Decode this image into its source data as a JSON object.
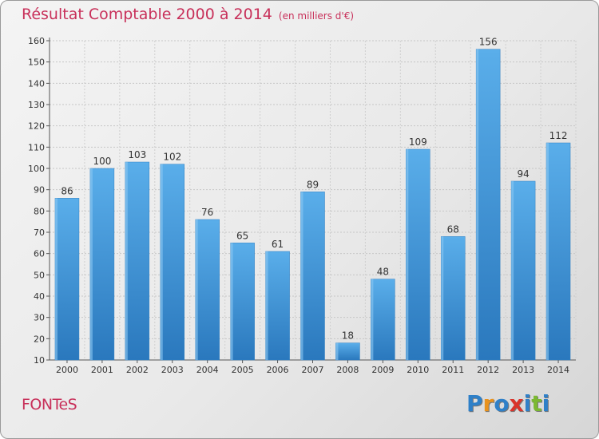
{
  "header": {
    "title": "Résultat Comptable 2000 à 2014",
    "subtitle": "(en milliers d'€)"
  },
  "footer": {
    "commune": "FONTeS",
    "logo_text": "Proxiti",
    "logo_colors": [
      "#2f80c8",
      "#e8921e",
      "#2f80c8",
      "#d9342b",
      "#2f80c8",
      "#7cb832",
      "#2f80c8"
    ]
  },
  "chart_data": {
    "type": "bar",
    "title": "Résultat Comptable 2000 à 2014",
    "subtitle": "(en milliers d'€)",
    "categories": [
      "2000",
      "2001",
      "2002",
      "2003",
      "2004",
      "2005",
      "2006",
      "2007",
      "2008",
      "2009",
      "2010",
      "2011",
      "2012",
      "2013",
      "2014"
    ],
    "values": [
      86,
      100,
      103,
      102,
      76,
      65,
      61,
      89,
      18,
      48,
      109,
      68,
      156,
      94,
      112
    ],
    "yticks": [
      10,
      20,
      30,
      40,
      50,
      60,
      70,
      80,
      90,
      100,
      110,
      120,
      130,
      140,
      150,
      160
    ],
    "ylim": [
      10,
      160
    ],
    "grid": true,
    "bar_color": "#4a9fe0"
  }
}
